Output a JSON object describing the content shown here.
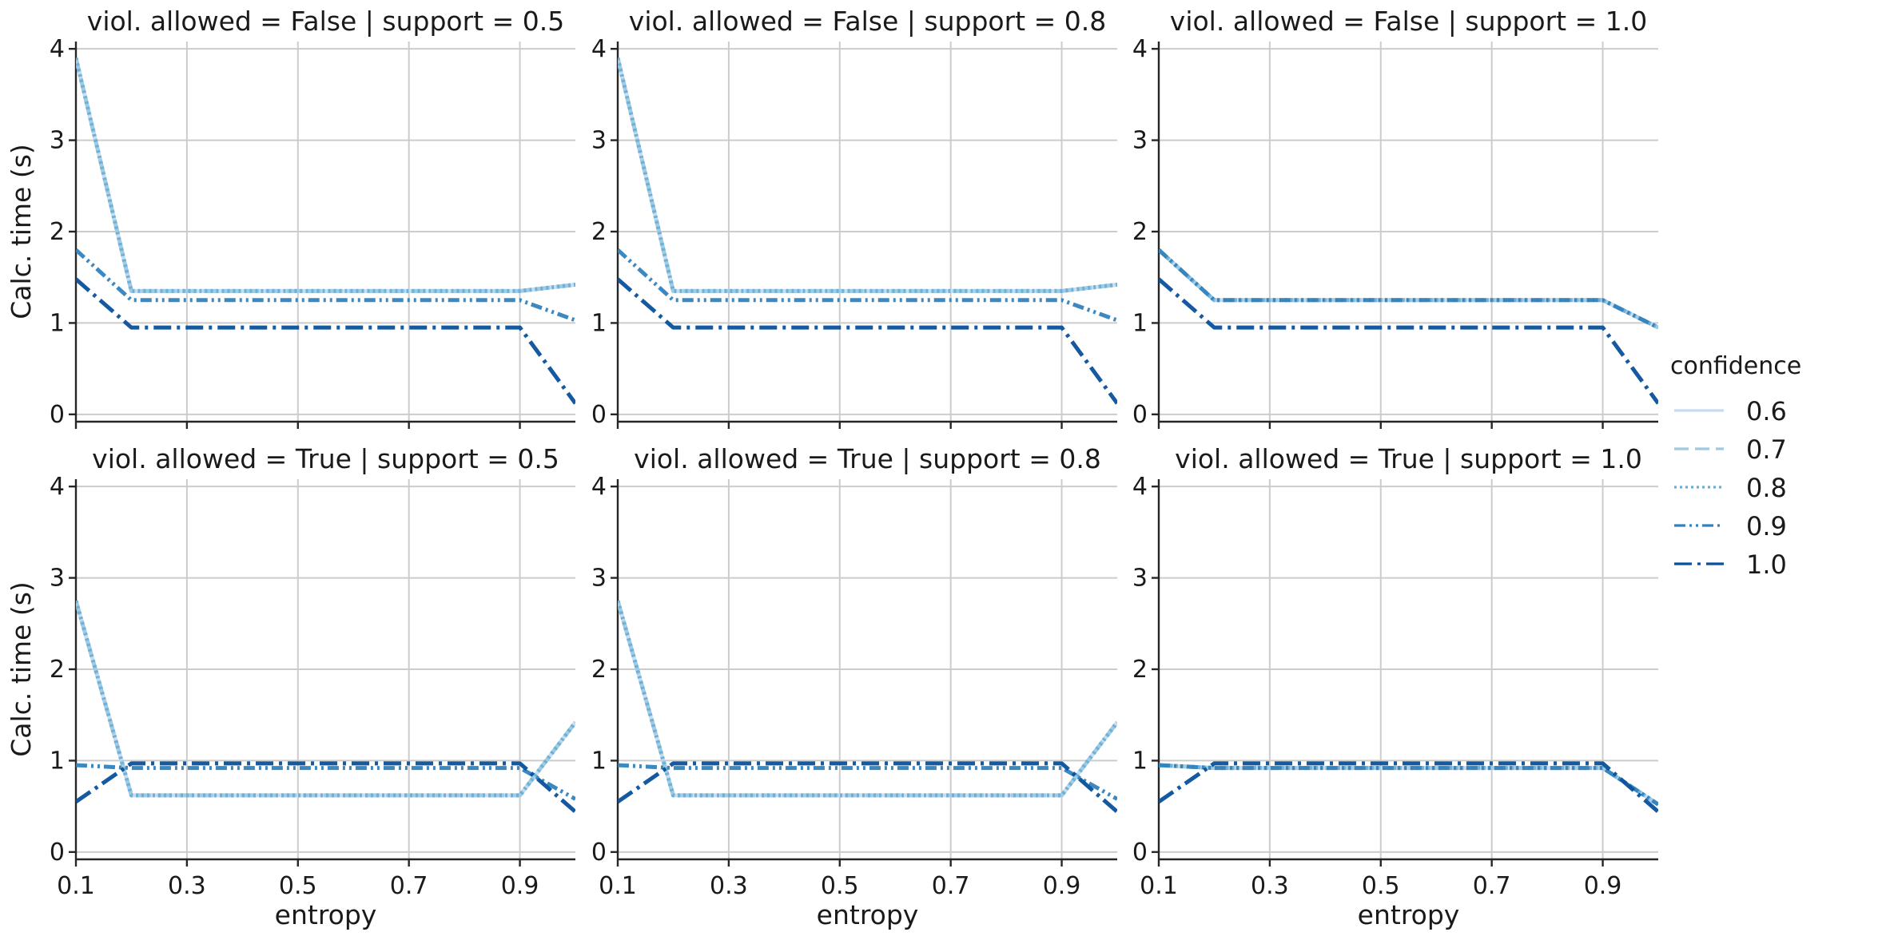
{
  "chart_data": {
    "type": "line",
    "layout": "facet-grid",
    "row_var": "viol. allowed",
    "col_var": "support",
    "xlabel": "entropy",
    "ylabel": "Calc. time (s)",
    "xlim": [
      0.1,
      1.0
    ],
    "ylim": [
      -0.08,
      4.08
    ],
    "xticks": [
      0.1,
      0.3,
      0.5,
      0.7,
      0.9
    ],
    "yticks": [
      0,
      1,
      2,
      3,
      4
    ],
    "grid": true,
    "legend": {
      "title": "confidence",
      "placement": "right",
      "entries": [
        "0.6",
        "0.7",
        "0.8",
        "0.9",
        "1.0"
      ]
    },
    "series_styles": [
      {
        "name": "0.6",
        "color": "#c6dbef",
        "dash": "solid"
      },
      {
        "name": "0.7",
        "color": "#9ecae1",
        "dash": "dashed"
      },
      {
        "name": "0.8",
        "color": "#6baed6",
        "dash": "dotted"
      },
      {
        "name": "0.9",
        "color": "#3182bd",
        "dash": "dashdotdot"
      },
      {
        "name": "1.0",
        "color": "#08519c",
        "dash": "dashdot"
      }
    ],
    "x": [
      0.1,
      0.2,
      0.9,
      1.0
    ],
    "panels": [
      {
        "title": "viol. allowed = False | support = 0.5",
        "series": [
          {
            "name": "0.6",
            "values": [
              3.9,
              1.35,
              1.35,
              1.42
            ]
          },
          {
            "name": "0.7",
            "values": [
              3.9,
              1.35,
              1.35,
              1.42
            ]
          },
          {
            "name": "0.8",
            "values": [
              3.9,
              1.35,
              1.35,
              1.42
            ]
          },
          {
            "name": "0.9",
            "values": [
              1.8,
              1.25,
              1.25,
              1.03
            ]
          },
          {
            "name": "1.0",
            "values": [
              1.48,
              0.95,
              0.95,
              0.12
            ]
          }
        ]
      },
      {
        "title": "viol. allowed = False | support = 0.8",
        "series": [
          {
            "name": "0.6",
            "values": [
              3.9,
              1.35,
              1.35,
              1.42
            ]
          },
          {
            "name": "0.7",
            "values": [
              3.9,
              1.35,
              1.35,
              1.42
            ]
          },
          {
            "name": "0.8",
            "values": [
              3.9,
              1.35,
              1.35,
              1.42
            ]
          },
          {
            "name": "0.9",
            "values": [
              1.8,
              1.25,
              1.25,
              1.03
            ]
          },
          {
            "name": "1.0",
            "values": [
              1.48,
              0.95,
              0.95,
              0.12
            ]
          }
        ]
      },
      {
        "title": "viol. allowed = False | support = 1.0",
        "series": [
          {
            "name": "0.6",
            "values": [
              1.8,
              1.25,
              1.25,
              0.95
            ]
          },
          {
            "name": "0.7",
            "values": [
              1.8,
              1.25,
              1.25,
              0.95
            ]
          },
          {
            "name": "0.8",
            "values": [
              1.8,
              1.25,
              1.25,
              0.95
            ]
          },
          {
            "name": "0.9",
            "values": [
              1.8,
              1.25,
              1.25,
              0.95
            ]
          },
          {
            "name": "1.0",
            "values": [
              1.48,
              0.95,
              0.95,
              0.12
            ]
          }
        ]
      },
      {
        "title": "viol. allowed = True | support = 0.5",
        "series": [
          {
            "name": "0.6",
            "values": [
              2.75,
              0.62,
              0.62,
              1.42
            ]
          },
          {
            "name": "0.7",
            "values": [
              2.75,
              0.62,
              0.62,
              1.42
            ]
          },
          {
            "name": "0.8",
            "values": [
              2.75,
              0.62,
              0.62,
              1.42
            ]
          },
          {
            "name": "0.9",
            "values": [
              0.95,
              0.92,
              0.92,
              0.58
            ]
          },
          {
            "name": "1.0",
            "values": [
              0.55,
              0.97,
              0.97,
              0.44
            ]
          }
        ]
      },
      {
        "title": "viol. allowed = True | support = 0.8",
        "series": [
          {
            "name": "0.6",
            "values": [
              2.75,
              0.62,
              0.62,
              1.42
            ]
          },
          {
            "name": "0.7",
            "values": [
              2.75,
              0.62,
              0.62,
              1.42
            ]
          },
          {
            "name": "0.8",
            "values": [
              2.75,
              0.62,
              0.62,
              1.42
            ]
          },
          {
            "name": "0.9",
            "values": [
              0.95,
              0.92,
              0.92,
              0.58
            ]
          },
          {
            "name": "1.0",
            "values": [
              0.55,
              0.97,
              0.97,
              0.44
            ]
          }
        ]
      },
      {
        "title": "viol. allowed = True | support = 1.0",
        "series": [
          {
            "name": "0.6",
            "values": [
              0.95,
              0.92,
              0.92,
              0.52
            ]
          },
          {
            "name": "0.7",
            "values": [
              0.95,
              0.92,
              0.92,
              0.52
            ]
          },
          {
            "name": "0.8",
            "values": [
              0.95,
              0.92,
              0.92,
              0.52
            ]
          },
          {
            "name": "0.9",
            "values": [
              0.95,
              0.92,
              0.92,
              0.52
            ]
          },
          {
            "name": "1.0",
            "values": [
              0.55,
              0.97,
              0.97,
              0.44
            ]
          }
        ]
      }
    ]
  }
}
